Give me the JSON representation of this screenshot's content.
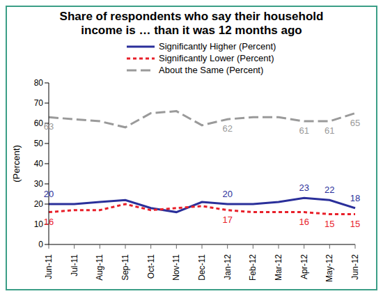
{
  "chart_data": {
    "type": "line",
    "title": "Share of respondents who say their household income is … than  it was 12 months ago",
    "y_label": "(Percent)",
    "categories": [
      "Jun-11",
      "Jul-11",
      "Aug-11",
      "Sep-11",
      "Oct-11",
      "Nov-11",
      "Dec-11",
      "Jan-12",
      "Feb-12",
      "Mar-12",
      "Apr-12",
      "May-12",
      "Jun-12"
    ],
    "series": [
      {
        "name": "Significantly Higher (Percent)",
        "color": "#2a2f9a",
        "line_style": "solid",
        "values": [
          20,
          20,
          21,
          22,
          18,
          16,
          21,
          20,
          20,
          21,
          23,
          22,
          18
        ],
        "value_labels": [
          "20",
          null,
          null,
          null,
          null,
          null,
          null,
          "20",
          null,
          null,
          "23",
          "22",
          "18"
        ]
      },
      {
        "name": "Significantly Lower (Percent)",
        "color": "#e8202a",
        "line_style": "dotted",
        "values": [
          16,
          17,
          17,
          20,
          17,
          18,
          19,
          17,
          16,
          16,
          16,
          15,
          15
        ],
        "value_labels": [
          "16",
          null,
          null,
          null,
          null,
          null,
          null,
          "17",
          null,
          null,
          "16",
          "15",
          "15"
        ]
      },
      {
        "name": "About the Same (Percent)",
        "color": "#9a9a9a",
        "line_style": "dashed",
        "values": [
          63,
          62,
          61,
          58,
          65,
          66,
          59,
          62,
          63,
          63,
          61,
          61,
          65
        ],
        "value_labels": [
          "63",
          null,
          null,
          null,
          null,
          null,
          null,
          "62",
          null,
          null,
          "61",
          "61",
          "65"
        ]
      }
    ],
    "ylim": [
      0,
      80
    ],
    "yticks": [
      0,
      10,
      20,
      30,
      40,
      50,
      60,
      70,
      80
    ],
    "grid": false,
    "legend": "top",
    "data_labels": true
  }
}
